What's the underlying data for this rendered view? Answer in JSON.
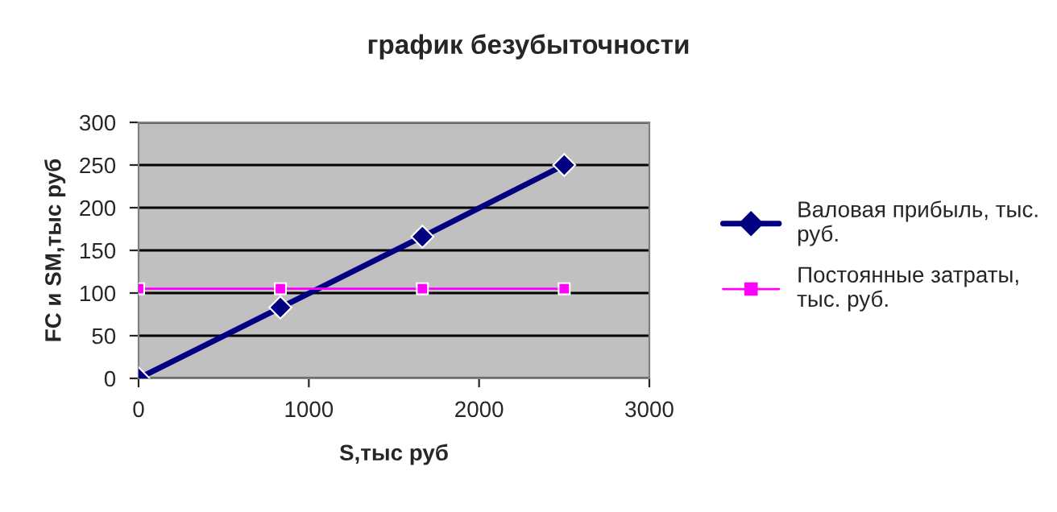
{
  "chart_data": {
    "type": "line",
    "title": "график безубыточности",
    "xlabel": "S,тыс руб",
    "ylabel": "FC и SM,тыс руб",
    "xlim": [
      0,
      3000
    ],
    "xticks": [
      0,
      1000,
      2000,
      3000
    ],
    "ylim": [
      0,
      300
    ],
    "yticks": [
      0,
      50,
      100,
      150,
      200,
      250,
      300
    ],
    "grid": "y",
    "legend": "right",
    "series": [
      {
        "name": "Валовая прибыль, тыс. руб.",
        "color": "#000080",
        "marker": "diamond",
        "x": [
          0,
          833,
          1667,
          2500
        ],
        "values": [
          0,
          83,
          166,
          250
        ]
      },
      {
        "name": "Постоянные затраты, тыс. руб.",
        "color": "#ff00ff",
        "marker": "square",
        "x": [
          0,
          833,
          1667,
          2500
        ],
        "values": [
          105,
          105,
          105,
          105
        ]
      }
    ]
  }
}
